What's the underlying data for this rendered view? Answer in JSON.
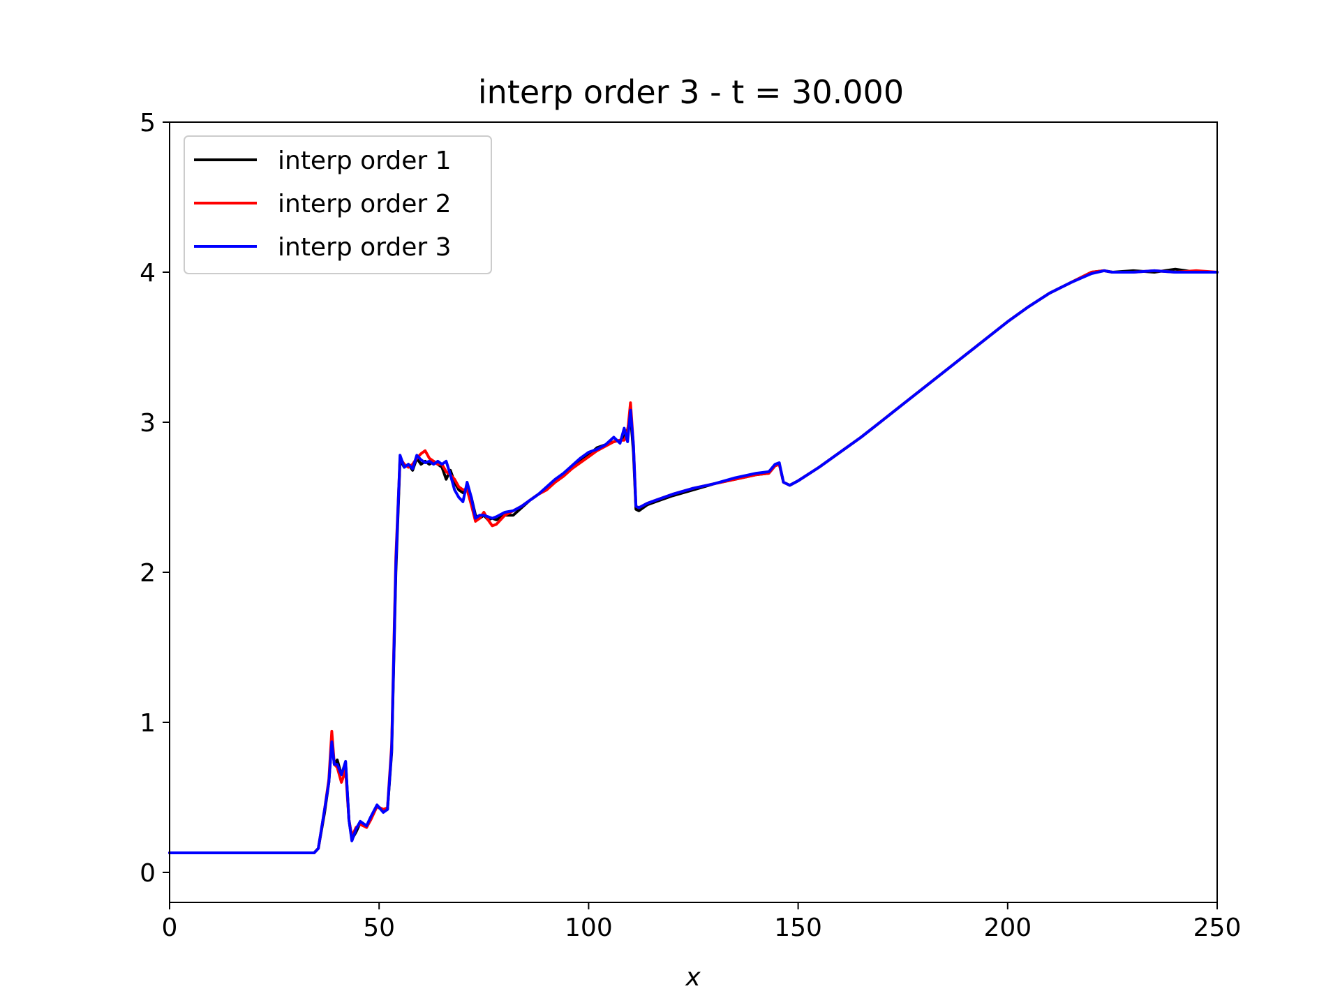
{
  "chart_data": {
    "type": "line",
    "title": "interp order 3 - t = 30.000",
    "xlabel": "x",
    "ylabel": "",
    "xlim": [
      0,
      250
    ],
    "ylim": [
      -0.2,
      5
    ],
    "xticks": [
      "0",
      "50",
      "100",
      "150",
      "200",
      "250"
    ],
    "yticks": [
      "0",
      "1",
      "2",
      "3",
      "4",
      "5"
    ],
    "grid": false,
    "legend_position": "top-left",
    "series": [
      {
        "name": "interp order 1",
        "color": "#000000",
        "points": [
          [
            0,
            0.13
          ],
          [
            10,
            0.13
          ],
          [
            20,
            0.13
          ],
          [
            30,
            0.13
          ],
          [
            34.5,
            0.13
          ],
          [
            35.5,
            0.16
          ],
          [
            37,
            0.4
          ],
          [
            38,
            0.6
          ],
          [
            38.7,
            0.88
          ],
          [
            39.3,
            0.72
          ],
          [
            40,
            0.75
          ],
          [
            41,
            0.65
          ],
          [
            42,
            0.73
          ],
          [
            42.8,
            0.35
          ],
          [
            43.5,
            0.22
          ],
          [
            44.5,
            0.27
          ],
          [
            45.5,
            0.33
          ],
          [
            47,
            0.3
          ],
          [
            48,
            0.36
          ],
          [
            49.5,
            0.44
          ],
          [
            51,
            0.41
          ],
          [
            52,
            0.42
          ],
          [
            53,
            0.8
          ],
          [
            54,
            2.0
          ],
          [
            55,
            2.75
          ],
          [
            56,
            2.7
          ],
          [
            57,
            2.72
          ],
          [
            58,
            2.68
          ],
          [
            59,
            2.76
          ],
          [
            60,
            2.72
          ],
          [
            61,
            2.74
          ],
          [
            62,
            2.72
          ],
          [
            63,
            2.74
          ],
          [
            64,
            2.72
          ],
          [
            65,
            2.7
          ],
          [
            66,
            2.62
          ],
          [
            67,
            2.68
          ],
          [
            68,
            2.6
          ],
          [
            69,
            2.55
          ],
          [
            70,
            2.53
          ],
          [
            71,
            2.57
          ],
          [
            72,
            2.5
          ],
          [
            73,
            2.38
          ],
          [
            74,
            2.36
          ],
          [
            75,
            2.38
          ],
          [
            76,
            2.35
          ],
          [
            77,
            2.36
          ],
          [
            78,
            2.35
          ],
          [
            80,
            2.38
          ],
          [
            82,
            2.38
          ],
          [
            84,
            2.43
          ],
          [
            86,
            2.48
          ],
          [
            88,
            2.52
          ],
          [
            90,
            2.56
          ],
          [
            92,
            2.61
          ],
          [
            94,
            2.65
          ],
          [
            96,
            2.7
          ],
          [
            98,
            2.74
          ],
          [
            100,
            2.78
          ],
          [
            102,
            2.83
          ],
          [
            104,
            2.85
          ],
          [
            106,
            2.87
          ],
          [
            107.5,
            2.88
          ],
          [
            108.5,
            2.9
          ],
          [
            109.3,
            2.95
          ],
          [
            110,
            3.05
          ],
          [
            110.7,
            2.8
          ],
          [
            111.3,
            2.42
          ],
          [
            112,
            2.41
          ],
          [
            114,
            2.45
          ],
          [
            116,
            2.47
          ],
          [
            118,
            2.49
          ],
          [
            120,
            2.51
          ],
          [
            125,
            2.55
          ],
          [
            130,
            2.59
          ],
          [
            135,
            2.62
          ],
          [
            140,
            2.65
          ],
          [
            143,
            2.66
          ],
          [
            144.5,
            2.71
          ],
          [
            145.5,
            2.72
          ],
          [
            146.5,
            2.6
          ],
          [
            148,
            2.58
          ],
          [
            150,
            2.61
          ],
          [
            155,
            2.7
          ],
          [
            160,
            2.8
          ],
          [
            165,
            2.9
          ],
          [
            170,
            3.01
          ],
          [
            175,
            3.12
          ],
          [
            180,
            3.23
          ],
          [
            185,
            3.34
          ],
          [
            190,
            3.45
          ],
          [
            195,
            3.56
          ],
          [
            200,
            3.67
          ],
          [
            205,
            3.77
          ],
          [
            210,
            3.86
          ],
          [
            215,
            3.93
          ],
          [
            220,
            4.0
          ],
          [
            223,
            4.01
          ],
          [
            225,
            4.0
          ],
          [
            230,
            4.01
          ],
          [
            235,
            4.0
          ],
          [
            240,
            4.02
          ],
          [
            245,
            4.0
          ],
          [
            250,
            4.0
          ]
        ]
      },
      {
        "name": "interp order 2",
        "color": "#ff0000",
        "points": [
          [
            0,
            0.13
          ],
          [
            10,
            0.13
          ],
          [
            20,
            0.13
          ],
          [
            30,
            0.13
          ],
          [
            34.5,
            0.13
          ],
          [
            35.5,
            0.16
          ],
          [
            37,
            0.42
          ],
          [
            38,
            0.62
          ],
          [
            38.7,
            0.94
          ],
          [
            39.3,
            0.72
          ],
          [
            40,
            0.7
          ],
          [
            41,
            0.6
          ],
          [
            42,
            0.68
          ],
          [
            42.8,
            0.35
          ],
          [
            43.5,
            0.24
          ],
          [
            44.5,
            0.3
          ],
          [
            45.5,
            0.32
          ],
          [
            47,
            0.3
          ],
          [
            48,
            0.35
          ],
          [
            49.5,
            0.44
          ],
          [
            51,
            0.42
          ],
          [
            52,
            0.43
          ],
          [
            53,
            0.85
          ],
          [
            54,
            2.1
          ],
          [
            55,
            2.76
          ],
          [
            56,
            2.72
          ],
          [
            57,
            2.7
          ],
          [
            58,
            2.72
          ],
          [
            59,
            2.76
          ],
          [
            60,
            2.79
          ],
          [
            61,
            2.81
          ],
          [
            62,
            2.76
          ],
          [
            63,
            2.74
          ],
          [
            64,
            2.72
          ],
          [
            65,
            2.72
          ],
          [
            66,
            2.67
          ],
          [
            67,
            2.65
          ],
          [
            68,
            2.62
          ],
          [
            69,
            2.57
          ],
          [
            70,
            2.55
          ],
          [
            71,
            2.55
          ],
          [
            72,
            2.45
          ],
          [
            73,
            2.34
          ],
          [
            74,
            2.36
          ],
          [
            75,
            2.4
          ],
          [
            76,
            2.35
          ],
          [
            77,
            2.31
          ],
          [
            78,
            2.32
          ],
          [
            80,
            2.38
          ],
          [
            82,
            2.41
          ],
          [
            84,
            2.44
          ],
          [
            86,
            2.48
          ],
          [
            88,
            2.52
          ],
          [
            90,
            2.55
          ],
          [
            92,
            2.6
          ],
          [
            94,
            2.64
          ],
          [
            96,
            2.69
          ],
          [
            98,
            2.73
          ],
          [
            100,
            2.77
          ],
          [
            102,
            2.81
          ],
          [
            104,
            2.84
          ],
          [
            106,
            2.87
          ],
          [
            107.5,
            2.88
          ],
          [
            108.5,
            2.88
          ],
          [
            109.3,
            2.93
          ],
          [
            110,
            3.13
          ],
          [
            110.7,
            2.85
          ],
          [
            111.3,
            2.44
          ],
          [
            112,
            2.43
          ],
          [
            114,
            2.46
          ],
          [
            116,
            2.48
          ],
          [
            118,
            2.5
          ],
          [
            120,
            2.52
          ],
          [
            125,
            2.56
          ],
          [
            130,
            2.59
          ],
          [
            135,
            2.62
          ],
          [
            140,
            2.65
          ],
          [
            143,
            2.66
          ],
          [
            144.5,
            2.71
          ],
          [
            145.5,
            2.72
          ],
          [
            146.5,
            2.6
          ],
          [
            148,
            2.58
          ],
          [
            150,
            2.61
          ],
          [
            155,
            2.7
          ],
          [
            160,
            2.8
          ],
          [
            165,
            2.9
          ],
          [
            170,
            3.01
          ],
          [
            175,
            3.12
          ],
          [
            180,
            3.23
          ],
          [
            185,
            3.34
          ],
          [
            190,
            3.45
          ],
          [
            195,
            3.56
          ],
          [
            200,
            3.67
          ],
          [
            205,
            3.77
          ],
          [
            210,
            3.86
          ],
          [
            215,
            3.93
          ],
          [
            220,
            4.0
          ],
          [
            223,
            4.01
          ],
          [
            225,
            4.0
          ],
          [
            230,
            4.0
          ],
          [
            235,
            4.01
          ],
          [
            240,
            4.0
          ],
          [
            245,
            4.01
          ],
          [
            250,
            4.0
          ]
        ]
      },
      {
        "name": "interp order 3",
        "color": "#0000ff",
        "points": [
          [
            0,
            0.13
          ],
          [
            10,
            0.13
          ],
          [
            20,
            0.13
          ],
          [
            30,
            0.13
          ],
          [
            34.5,
            0.13
          ],
          [
            35.5,
            0.16
          ],
          [
            37,
            0.42
          ],
          [
            38,
            0.6
          ],
          [
            38.7,
            0.87
          ],
          [
            39.3,
            0.72
          ],
          [
            40,
            0.72
          ],
          [
            41,
            0.65
          ],
          [
            42,
            0.74
          ],
          [
            42.8,
            0.35
          ],
          [
            43.5,
            0.21
          ],
          [
            44.5,
            0.29
          ],
          [
            45.5,
            0.34
          ],
          [
            47,
            0.31
          ],
          [
            48,
            0.37
          ],
          [
            49.5,
            0.45
          ],
          [
            51,
            0.4
          ],
          [
            52,
            0.42
          ],
          [
            53,
            0.82
          ],
          [
            54,
            2.05
          ],
          [
            55,
            2.78
          ],
          [
            56,
            2.7
          ],
          [
            57,
            2.72
          ],
          [
            58,
            2.69
          ],
          [
            59,
            2.78
          ],
          [
            60,
            2.75
          ],
          [
            61,
            2.73
          ],
          [
            62,
            2.74
          ],
          [
            63,
            2.72
          ],
          [
            64,
            2.74
          ],
          [
            65,
            2.72
          ],
          [
            66,
            2.74
          ],
          [
            67,
            2.65
          ],
          [
            68,
            2.55
          ],
          [
            69,
            2.5
          ],
          [
            70,
            2.47
          ],
          [
            71,
            2.6
          ],
          [
            72,
            2.5
          ],
          [
            73,
            2.36
          ],
          [
            74,
            2.38
          ],
          [
            75,
            2.38
          ],
          [
            76,
            2.37
          ],
          [
            77,
            2.36
          ],
          [
            78,
            2.37
          ],
          [
            80,
            2.4
          ],
          [
            82,
            2.41
          ],
          [
            84,
            2.44
          ],
          [
            86,
            2.48
          ],
          [
            88,
            2.52
          ],
          [
            90,
            2.57
          ],
          [
            92,
            2.62
          ],
          [
            94,
            2.66
          ],
          [
            96,
            2.71
          ],
          [
            98,
            2.76
          ],
          [
            100,
            2.8
          ],
          [
            102,
            2.82
          ],
          [
            104,
            2.85
          ],
          [
            106,
            2.9
          ],
          [
            107.5,
            2.86
          ],
          [
            108.5,
            2.96
          ],
          [
            109.3,
            2.87
          ],
          [
            110,
            3.08
          ],
          [
            110.7,
            2.85
          ],
          [
            111.3,
            2.44
          ],
          [
            112,
            2.43
          ],
          [
            114,
            2.46
          ],
          [
            116,
            2.48
          ],
          [
            118,
            2.5
          ],
          [
            120,
            2.52
          ],
          [
            125,
            2.56
          ],
          [
            130,
            2.59
          ],
          [
            135,
            2.63
          ],
          [
            140,
            2.66
          ],
          [
            143,
            2.67
          ],
          [
            144.5,
            2.72
          ],
          [
            145.5,
            2.73
          ],
          [
            146.5,
            2.6
          ],
          [
            148,
            2.58
          ],
          [
            150,
            2.61
          ],
          [
            155,
            2.7
          ],
          [
            160,
            2.8
          ],
          [
            165,
            2.9
          ],
          [
            170,
            3.01
          ],
          [
            175,
            3.12
          ],
          [
            180,
            3.23
          ],
          [
            185,
            3.34
          ],
          [
            190,
            3.45
          ],
          [
            195,
            3.56
          ],
          [
            200,
            3.67
          ],
          [
            205,
            3.77
          ],
          [
            210,
            3.86
          ],
          [
            215,
            3.93
          ],
          [
            220,
            3.99
          ],
          [
            223,
            4.01
          ],
          [
            225,
            4.0
          ],
          [
            230,
            4.0
          ],
          [
            235,
            4.01
          ],
          [
            240,
            4.0
          ],
          [
            245,
            4.0
          ],
          [
            250,
            4.0
          ]
        ]
      }
    ]
  }
}
